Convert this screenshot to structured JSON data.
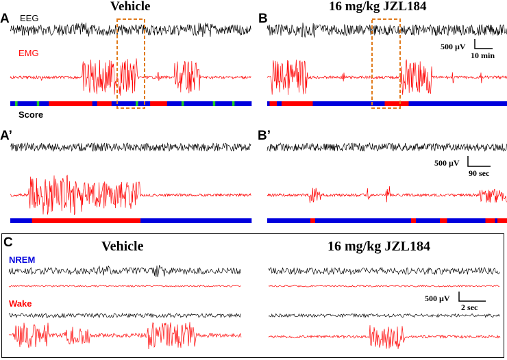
{
  "panels": {
    "A": "A",
    "B": "B",
    "A2": "A’",
    "B2": "B’",
    "C": "C"
  },
  "titles": {
    "vehicle": "Vehicle",
    "drug": "16 mg/kg JZL184"
  },
  "signals": {
    "eeg": "EEG",
    "emg": "EMG",
    "score": "Score",
    "nrem": "NREM",
    "wake": "Wake"
  },
  "scalebars": {
    "top": {
      "amplitude": "500 µV",
      "time": "10 min"
    },
    "mid": {
      "amplitude": "500 µV",
      "time": "90 sec"
    },
    "bottom": {
      "amplitude": "500 µV",
      "time": "2 sec"
    }
  },
  "colors": {
    "eeg": "#000000",
    "emg": "#ff0000",
    "nrem": "#0000dd",
    "wake": "#ff0000",
    "rem": "#22cc22",
    "highlight": "#e07a1a"
  },
  "hypnograms": {
    "A": [
      [
        "n",
        0.02
      ],
      [
        "r",
        0.01
      ],
      [
        "n",
        0.08
      ],
      [
        "r",
        0.01
      ],
      [
        "n",
        0.04
      ],
      [
        "w",
        0.18
      ],
      [
        "n",
        0.02
      ],
      [
        "w",
        0.06
      ],
      [
        "n",
        0.1
      ],
      [
        "r",
        0.01
      ],
      [
        "n",
        0.05
      ],
      [
        "w",
        0.07
      ],
      [
        "n",
        0.06
      ],
      [
        "r",
        0.01
      ],
      [
        "n",
        0.12
      ],
      [
        "r",
        0.01
      ],
      [
        "n",
        0.07
      ],
      [
        "r",
        0.01
      ],
      [
        "n",
        0.07
      ]
    ],
    "B": [
      [
        "n",
        0.01
      ],
      [
        "w",
        0.03
      ],
      [
        "n",
        0.02
      ],
      [
        "w",
        0.13
      ],
      [
        "n",
        0.3
      ],
      [
        "w",
        0.1
      ],
      [
        "n",
        0.41
      ]
    ],
    "A2": [
      [
        "n",
        0.09
      ],
      [
        "w",
        0.45
      ],
      [
        "n",
        0.46
      ]
    ],
    "B2": [
      [
        "n",
        0.18
      ],
      [
        "w",
        0.02
      ],
      [
        "n",
        0.4
      ],
      [
        "w",
        0.02
      ],
      [
        "n",
        0.1
      ],
      [
        "w",
        0.03
      ],
      [
        "n",
        0.16
      ],
      [
        "w",
        0.04
      ],
      [
        "n",
        0.01
      ],
      [
        "w",
        0.04
      ]
    ]
  }
}
